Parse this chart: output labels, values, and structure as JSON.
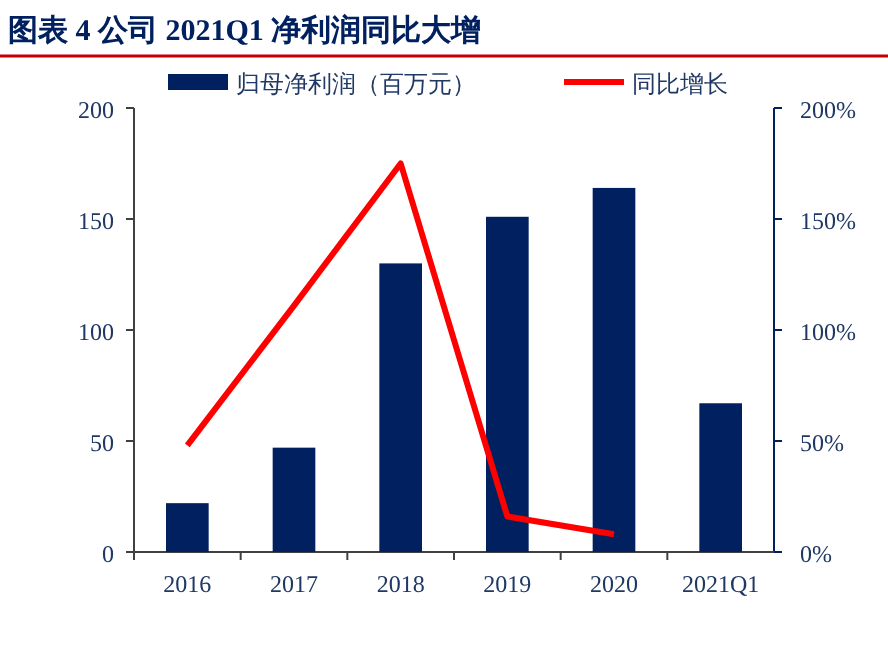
{
  "chart_data": {
    "type": "bar",
    "title": "图表 4 公司 2021Q1 净利润同比大增",
    "categories": [
      "2016",
      "2017",
      "2018",
      "2019",
      "2020",
      "2021Q1"
    ],
    "series": [
      {
        "name": "归母净利润（百万元）",
        "color": "#002060",
        "values": [
          22,
          47,
          130,
          151,
          164,
          67
        ]
      },
      {
        "name": "同比增长",
        "type": "line",
        "axis": "y2",
        "color": "#ff0000",
        "values": [
          0.48,
          1.11,
          1.75,
          0.16,
          0.08,
          null
        ]
      }
    ],
    "ylim": [
      0,
      200
    ],
    "yticks": [
      0,
      50,
      100,
      150,
      200
    ],
    "y2lim": [
      0,
      2
    ],
    "y2ticks": [
      {
        "value": 0,
        "label": "0%"
      },
      {
        "value": 0.5,
        "label": "50%"
      },
      {
        "value": 1,
        "label": "100%"
      },
      {
        "value": 1.5,
        "label": "150%"
      },
      {
        "value": 2,
        "label": "200%"
      }
    ],
    "legend": "top",
    "grid": false
  }
}
